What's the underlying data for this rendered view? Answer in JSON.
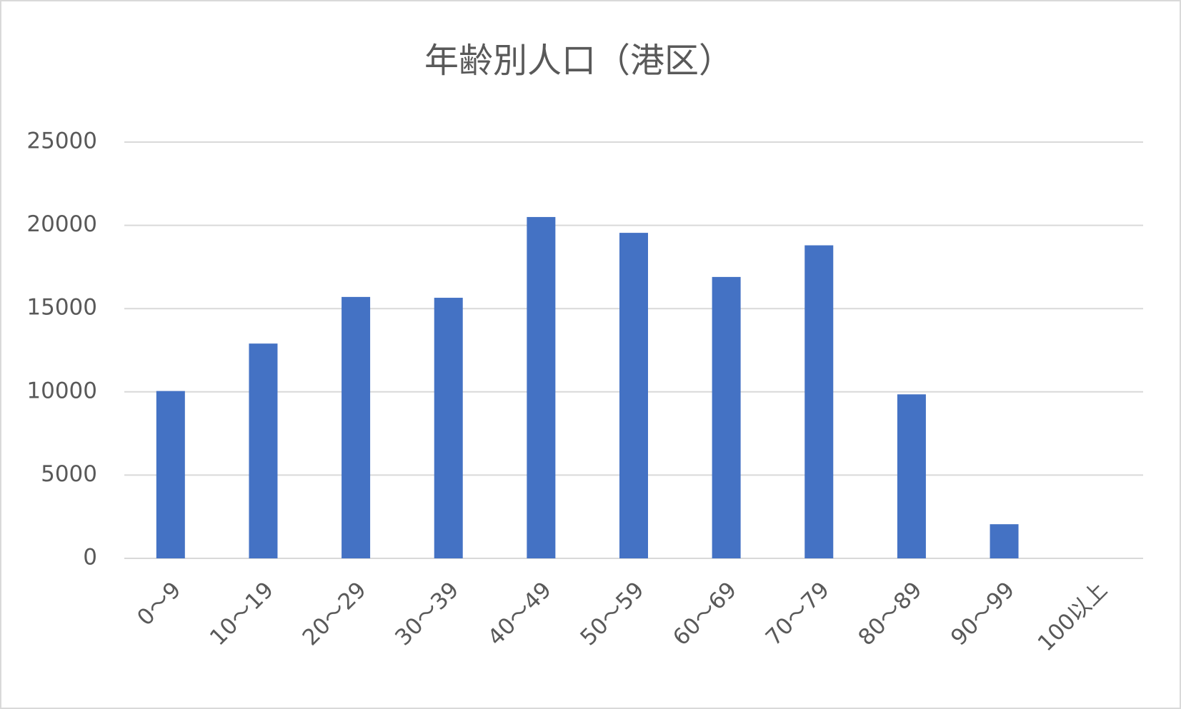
{
  "chart_data": {
    "type": "bar",
    "title": "年齢別人口（港区）",
    "categories": [
      "0～9",
      "10～19",
      "20～29",
      "30～39",
      "40～49",
      "50～59",
      "60～69",
      "70～79",
      "80～89",
      "90～99",
      "100以上"
    ],
    "values": [
      10050,
      12900,
      15700,
      15650,
      20500,
      19550,
      16900,
      18800,
      9850,
      2050,
      0
    ],
    "color": "#4472c4",
    "ylim": [
      0,
      25000
    ],
    "yticks": [
      0,
      5000,
      10000,
      15000,
      20000,
      25000
    ],
    "grid": true
  }
}
